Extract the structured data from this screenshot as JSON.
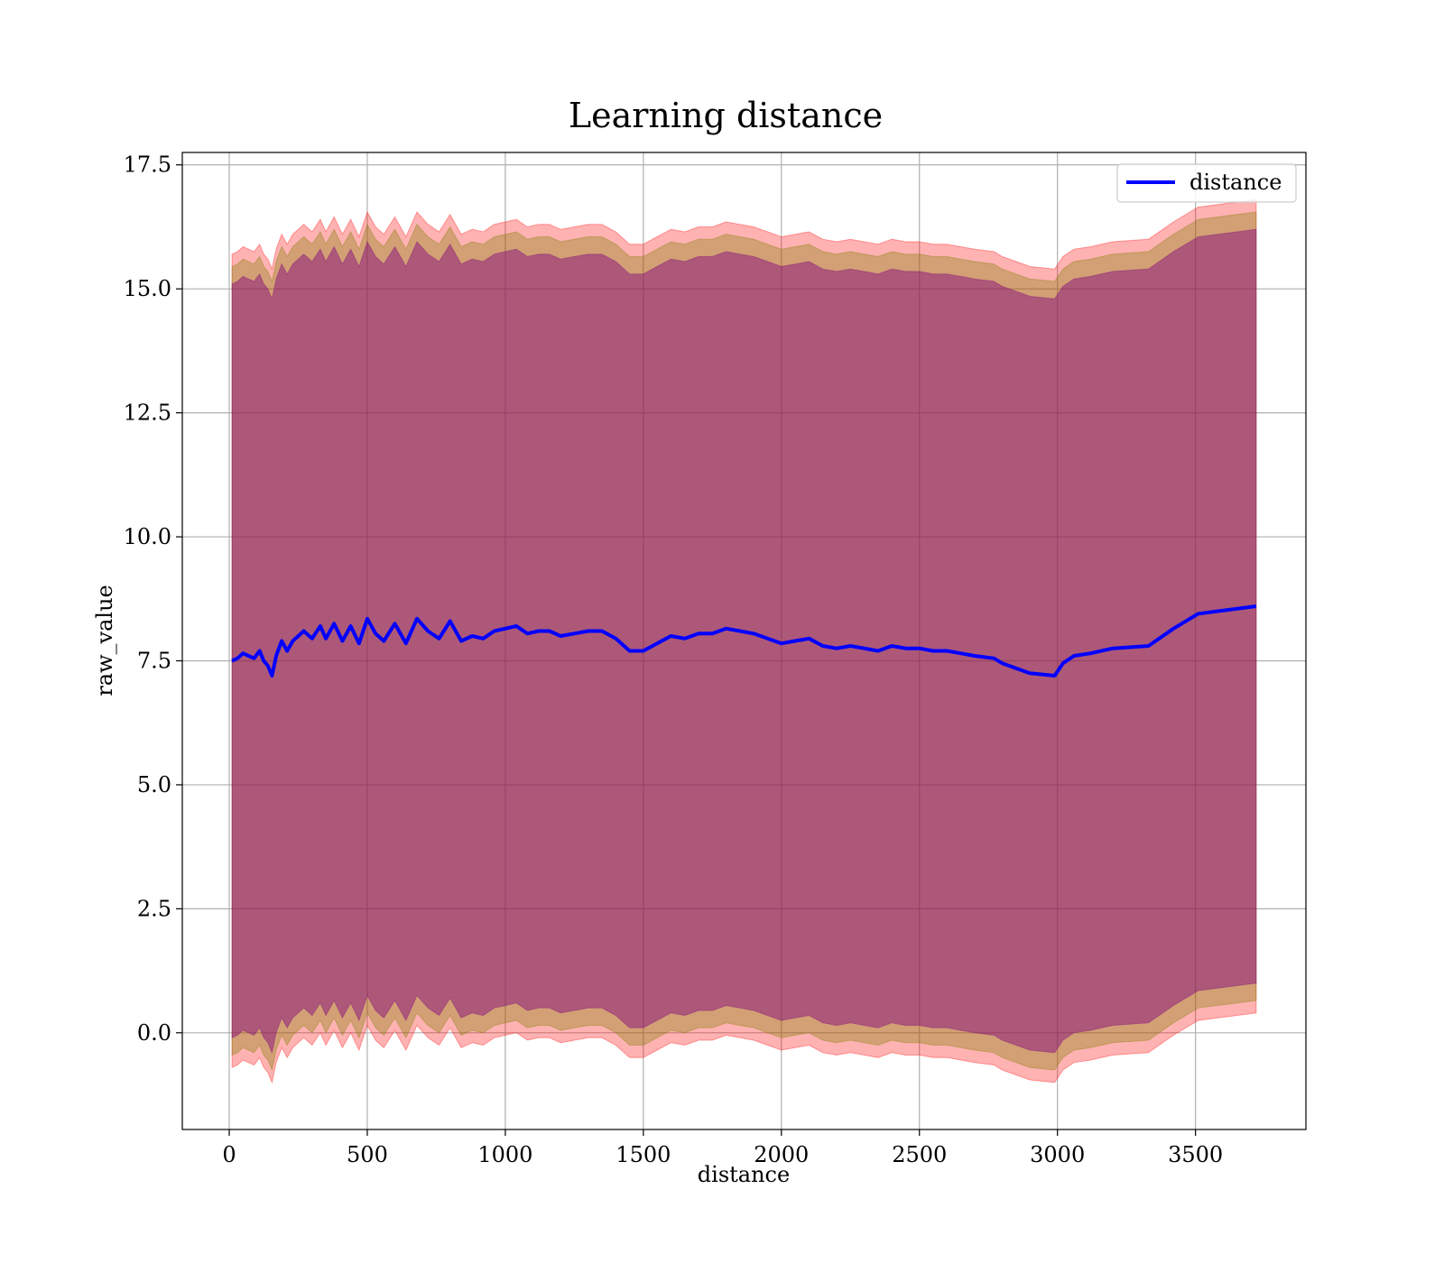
{
  "chart_data": {
    "type": "line",
    "title": "Learning distance",
    "xlabel": "distance",
    "ylabel": "raw_value",
    "xlim": [
      -170,
      3900
    ],
    "ylim": [
      -1.95,
      17.75
    ],
    "x_ticks": [
      0,
      500,
      1000,
      1500,
      2000,
      2500,
      3000,
      3500
    ],
    "x_tick_labels": [
      "0",
      "500",
      "1000",
      "1500",
      "2000",
      "2500",
      "3000",
      "3500"
    ],
    "y_ticks": [
      0.0,
      2.5,
      5.0,
      7.5,
      10.0,
      12.5,
      15.0,
      17.5
    ],
    "y_tick_labels": [
      "0.0",
      "2.5",
      "5.0",
      "7.5",
      "10.0",
      "12.5",
      "15.0",
      "17.5"
    ],
    "grid": true,
    "legend": {
      "position": "top-right",
      "entries": [
        "distance"
      ]
    },
    "series": [
      {
        "name": "distance",
        "color": "#0000ff",
        "x": [
          10,
          30,
          50,
          70,
          90,
          110,
          125,
          140,
          155,
          170,
          190,
          210,
          230,
          250,
          270,
          300,
          330,
          350,
          380,
          410,
          440,
          470,
          500,
          530,
          560,
          600,
          640,
          680,
          720,
          760,
          800,
          840,
          880,
          920,
          960,
          1000,
          1040,
          1080,
          1120,
          1160,
          1200,
          1250,
          1300,
          1350,
          1400,
          1450,
          1500,
          1550,
          1600,
          1650,
          1700,
          1750,
          1800,
          1850,
          1900,
          1950,
          2000,
          2050,
          2100,
          2150,
          2200,
          2250,
          2300,
          2350,
          2400,
          2450,
          2500,
          2550,
          2600,
          2650,
          2700,
          2770,
          2800,
          2850,
          2900,
          2990,
          3020,
          3060,
          3120,
          3200,
          3330,
          3420,
          3510,
          3720
        ],
        "values": [
          7.5,
          7.55,
          7.65,
          7.6,
          7.55,
          7.7,
          7.5,
          7.4,
          7.2,
          7.6,
          7.9,
          7.7,
          7.9,
          8.0,
          8.1,
          7.95,
          8.2,
          7.95,
          8.25,
          7.9,
          8.2,
          7.85,
          8.35,
          8.05,
          7.9,
          8.25,
          7.85,
          8.35,
          8.1,
          7.95,
          8.3,
          7.9,
          8.0,
          7.95,
          8.1,
          8.15,
          8.2,
          8.05,
          8.1,
          8.1,
          8.0,
          8.05,
          8.1,
          8.1,
          7.95,
          7.7,
          7.7,
          7.85,
          8.0,
          7.95,
          8.05,
          8.05,
          8.15,
          8.1,
          8.05,
          7.95,
          7.85,
          7.9,
          7.95,
          7.8,
          7.75,
          7.8,
          7.75,
          7.7,
          7.8,
          7.75,
          7.75,
          7.7,
          7.7,
          7.65,
          7.6,
          7.55,
          7.45,
          7.35,
          7.25,
          7.2,
          7.45,
          7.6,
          7.65,
          7.75,
          7.8,
          8.15,
          8.45,
          8.6
        ]
      }
    ],
    "bands": [
      {
        "name": "band-outer",
        "color": "#ff0000",
        "opacity": 0.3,
        "half_width": 8.2
      },
      {
        "name": "band-middle",
        "color": "#7f7f00",
        "opacity": 0.35,
        "half_width": 7.95
      },
      {
        "name": "band-inner",
        "color": "#800080",
        "opacity": 0.45,
        "half_width": 7.6
      }
    ]
  }
}
